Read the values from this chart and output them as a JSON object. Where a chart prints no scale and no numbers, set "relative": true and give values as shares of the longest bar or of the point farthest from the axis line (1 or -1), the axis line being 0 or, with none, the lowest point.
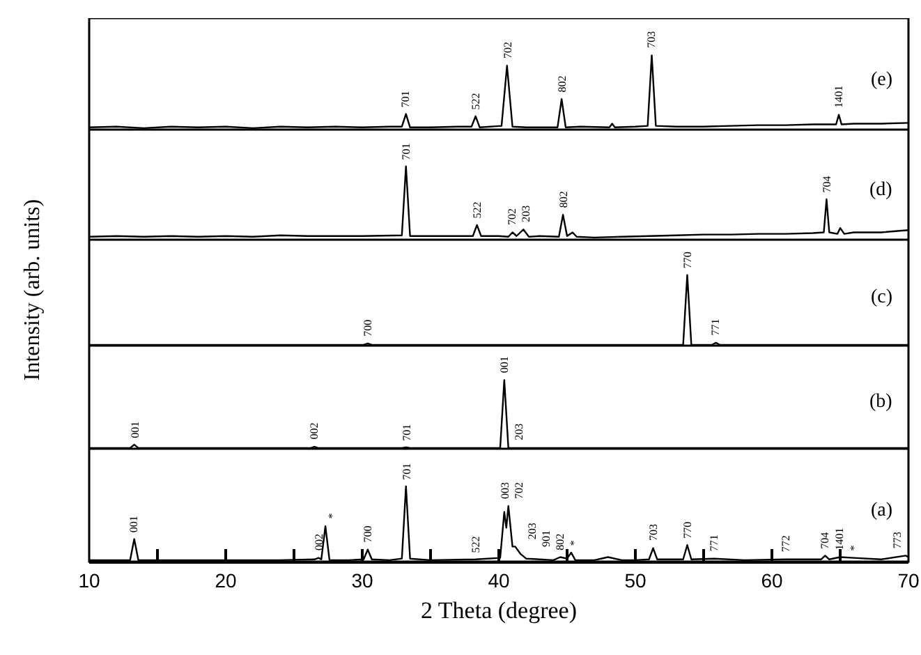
{
  "chart_data": [
    {
      "type": "line",
      "relative": true,
      "color": "#000000",
      "xlim": [
        10,
        70
      ],
      "tick_labels": false,
      "x": [
        10,
        12,
        14,
        16,
        18,
        20,
        22,
        24,
        26,
        28,
        30,
        32,
        32.9,
        33.2,
        33.5,
        35,
        37,
        38.0,
        38.3,
        38.6,
        40.2,
        40.6,
        41.0,
        42,
        44.3,
        44.6,
        44.9,
        46,
        48.1,
        48.3,
        48.5,
        50,
        50.9,
        51.2,
        51.5,
        53,
        55,
        57,
        59,
        61,
        63,
        64.7,
        64.9,
        65.1,
        66,
        68,
        70
      ],
      "values": [
        0.03,
        0.04,
        0.02,
        0.04,
        0.03,
        0.04,
        0.02,
        0.04,
        0.03,
        0.04,
        0.03,
        0.04,
        0.04,
        0.21,
        0.03,
        0.03,
        0.04,
        0.04,
        0.18,
        0.03,
        0.05,
        0.86,
        0.04,
        0.03,
        0.03,
        0.41,
        0.03,
        0.04,
        0.03,
        0.08,
        0.03,
        0.04,
        0.05,
        1,
        0.05,
        0.04,
        0.04,
        0.05,
        0.06,
        0.06,
        0.07,
        0.07,
        0.2,
        0.07,
        0.08,
        0.08,
        0.09
      ],
      "annotations": [
        {
          "text": "701",
          "x": 33.2,
          "y": 0.21
        },
        {
          "text": "522",
          "x": 38.3,
          "y": 0.18
        },
        {
          "text": "702",
          "x": 40.6,
          "y": 0.86
        },
        {
          "text": "802",
          "x": 44.6,
          "y": 0.41
        },
        {
          "text": "703",
          "x": 51.2,
          "y": 1
        },
        {
          "text": "1401",
          "x": 64.9,
          "y": 0.2
        },
        "(e)"
      ]
    },
    {
      "type": "line",
      "relative": true,
      "color": "#000000",
      "xlim": [
        10,
        70
      ],
      "tick_labels": false,
      "x": [
        10,
        12,
        14,
        16,
        18,
        20,
        22,
        24,
        26,
        28,
        30,
        32.9,
        33.2,
        33.5,
        35,
        37,
        38.1,
        38.4,
        38.7,
        40,
        40.7,
        41.0,
        41.3,
        41.8,
        42.2,
        43,
        44.4,
        44.7,
        45.0,
        45.4,
        45.7,
        47,
        49,
        51,
        53,
        55,
        57,
        59,
        61,
        63,
        63.8,
        64.0,
        64.2,
        64.8,
        65.0,
        65.3,
        66,
        68,
        70
      ],
      "values": [
        0.04,
        0.05,
        0.04,
        0.05,
        0.04,
        0.05,
        0.04,
        0.06,
        0.05,
        0.05,
        0.05,
        0.06,
        1,
        0.05,
        0.05,
        0.05,
        0.05,
        0.2,
        0.05,
        0.05,
        0.04,
        0.1,
        0.05,
        0.14,
        0.04,
        0.05,
        0.04,
        0.34,
        0.05,
        0.1,
        0.04,
        0.03,
        0.04,
        0.05,
        0.06,
        0.07,
        0.07,
        0.08,
        0.08,
        0.09,
        0.1,
        0.55,
        0.1,
        0.08,
        0.16,
        0.08,
        0.1,
        0.1,
        0.13
      ],
      "annotations": [
        {
          "text": "701",
          "x": 33.2,
          "y": 1
        },
        {
          "text": "522",
          "x": 38.4,
          "y": 0.2
        },
        {
          "text": "702",
          "x": 41.0,
          "y": 0.1
        },
        {
          "text": "203",
          "x": 41.8,
          "y": 0.14
        },
        {
          "text": "802",
          "x": 44.7,
          "y": 0.34
        },
        {
          "text": "704",
          "x": 64.0,
          "y": 0.55
        },
        "(d)"
      ]
    },
    {
      "type": "line",
      "relative": true,
      "color": "#000000",
      "xlim": [
        10,
        70
      ],
      "tick_labels": false,
      "ylabel": "Intensity (arb. units)",
      "x": [
        10,
        15,
        20,
        25,
        30.1,
        30.4,
        30.7,
        35,
        40,
        45,
        50,
        53.5,
        53.8,
        54.1,
        55.6,
        55.9,
        56.2,
        60,
        65,
        70
      ],
      "values": [
        0.01,
        0.01,
        0.01,
        0.01,
        0.01,
        0.03,
        0.01,
        0.01,
        0.01,
        0.01,
        0.01,
        0.01,
        1,
        0.01,
        0.01,
        0.04,
        0.01,
        0.01,
        0.01,
        0.01
      ],
      "annotations": [
        {
          "text": "700",
          "x": 30.4,
          "y": 0.03
        },
        {
          "text": "770",
          "x": 53.8,
          "y": 1
        },
        {
          "text": "771",
          "x": 55.9,
          "y": 0.04
        },
        "(c)"
      ]
    },
    {
      "type": "line",
      "relative": true,
      "color": "#000000",
      "xlim": [
        10,
        70
      ],
      "tick_labels": false,
      "x": [
        10,
        13.0,
        13.3,
        13.6,
        20,
        26.2,
        26.5,
        26.8,
        30,
        32.9,
        33.2,
        33.5,
        37,
        40.1,
        40.4,
        40.7,
        45,
        50,
        55,
        60,
        65,
        70
      ],
      "values": [
        0.01,
        0.01,
        0.06,
        0.01,
        0.01,
        0.01,
        0.03,
        0.01,
        0.01,
        0.01,
        0.02,
        0.01,
        0.01,
        0.01,
        1,
        0.01,
        0.01,
        0.01,
        0.01,
        0.01,
        0.01,
        0.01
      ],
      "annotations": [
        {
          "text": "001",
          "x": 13.3,
          "y": 0.06
        },
        {
          "text": "002",
          "x": 26.5,
          "y": 0.03
        },
        {
          "text": "701",
          "x": 33.2,
          "y": 0.02
        },
        {
          "text": "001",
          "x": 40.4,
          "y": 1
        },
        {
          "text": "203",
          "x": 41.3,
          "y": 0.02
        },
        "(b)"
      ]
    },
    {
      "type": "line",
      "relative": true,
      "color": "#000000",
      "xlim": [
        10,
        70
      ],
      "tick_labels": "x",
      "xlabel": "2 Theta (degree)",
      "xticks": [
        10,
        {
          "value": 15,
          "label": null
        },
        20,
        {
          "value": 25,
          "label": null
        },
        30,
        {
          "value": 35,
          "label": null
        },
        40,
        {
          "value": 45,
          "label": null
        },
        50,
        {
          "value": 55,
          "label": null
        },
        60,
        {
          "value": 65,
          "label": null
        },
        70
      ],
      "x": [
        10,
        12,
        13.0,
        13.3,
        13.6,
        16,
        20,
        24,
        26.5,
        26.8,
        27.0,
        27.3,
        27.6,
        29,
        30.1,
        30.4,
        30.7,
        32,
        32.9,
        33.2,
        33.5,
        35,
        38.3,
        40.1,
        40.4,
        40.55,
        40.7,
        41.0,
        41.2,
        41.6,
        42,
        44,
        44.5,
        45.0,
        45.3,
        45.6,
        47,
        48,
        49,
        50,
        51.0,
        51.3,
        51.6,
        53.5,
        53.8,
        54.1,
        55.8,
        58,
        61,
        63.6,
        63.9,
        64.2,
        65.0,
        66,
        68,
        69.8,
        70
      ],
      "values": [
        0.02,
        0.02,
        0.02,
        0.3,
        0.02,
        0.02,
        0.02,
        0.02,
        0.03,
        0.05,
        0.03,
        0.47,
        0.02,
        0.02,
        0.03,
        0.16,
        0.03,
        0.02,
        0.04,
        1,
        0.04,
        0.02,
        0.03,
        0.05,
        0.66,
        0.45,
        0.74,
        0.2,
        0.2,
        0.1,
        0.04,
        0.02,
        0.06,
        0.04,
        0.12,
        0.02,
        0.02,
        0.06,
        0.02,
        0.02,
        0.03,
        0.18,
        0.03,
        0.03,
        0.22,
        0.03,
        0.04,
        0.02,
        0.03,
        0.03,
        0.08,
        0.03,
        0.06,
        0.05,
        0.03,
        0.08,
        0.06
      ],
      "annotations": [
        {
          "text": "001",
          "x": 13.3,
          "y": 0.3
        },
        {
          "text": "002",
          "x": 26.8,
          "y": 0.05
        },
        {
          "text": "*",
          "x": 27.3,
          "y": 0.47
        },
        {
          "text": "700",
          "x": 30.4,
          "y": 0.16
        },
        {
          "text": "701",
          "x": 33.2,
          "y": 1
        },
        {
          "text": "522",
          "x": 38.3,
          "y": 0.03
        },
        {
          "text": "003",
          "x": 40.4,
          "y": 0.66
        },
        {
          "text": "702",
          "x": 40.7,
          "y": 0.74
        },
        {
          "text": "203",
          "x": 41.2,
          "y": 0.2
        },
        {
          "text": "901",
          "x": 41.6,
          "y": 0.1
        },
        {
          "text": "802",
          "x": 44.5,
          "y": 0.06
        },
        {
          "text": "*",
          "x": 45.3,
          "y": 0.12
        },
        {
          "text": "703",
          "x": 51.3,
          "y": 0.18
        },
        {
          "text": "770",
          "x": 53.8,
          "y": 0.22
        },
        {
          "text": "771",
          "x": 55.8,
          "y": 0.04
        },
        {
          "text": "772",
          "x": 61,
          "y": 0.03
        },
        {
          "text": "704",
          "x": 63.9,
          "y": 0.08
        },
        {
          "text": "1401",
          "x": 65.0,
          "y": 0.06
        },
        {
          "text": "*",
          "x": 66,
          "y": 0.05
        },
        {
          "text": "773",
          "x": 69.8,
          "y": 0.08
        },
        "(a)"
      ]
    }
  ]
}
